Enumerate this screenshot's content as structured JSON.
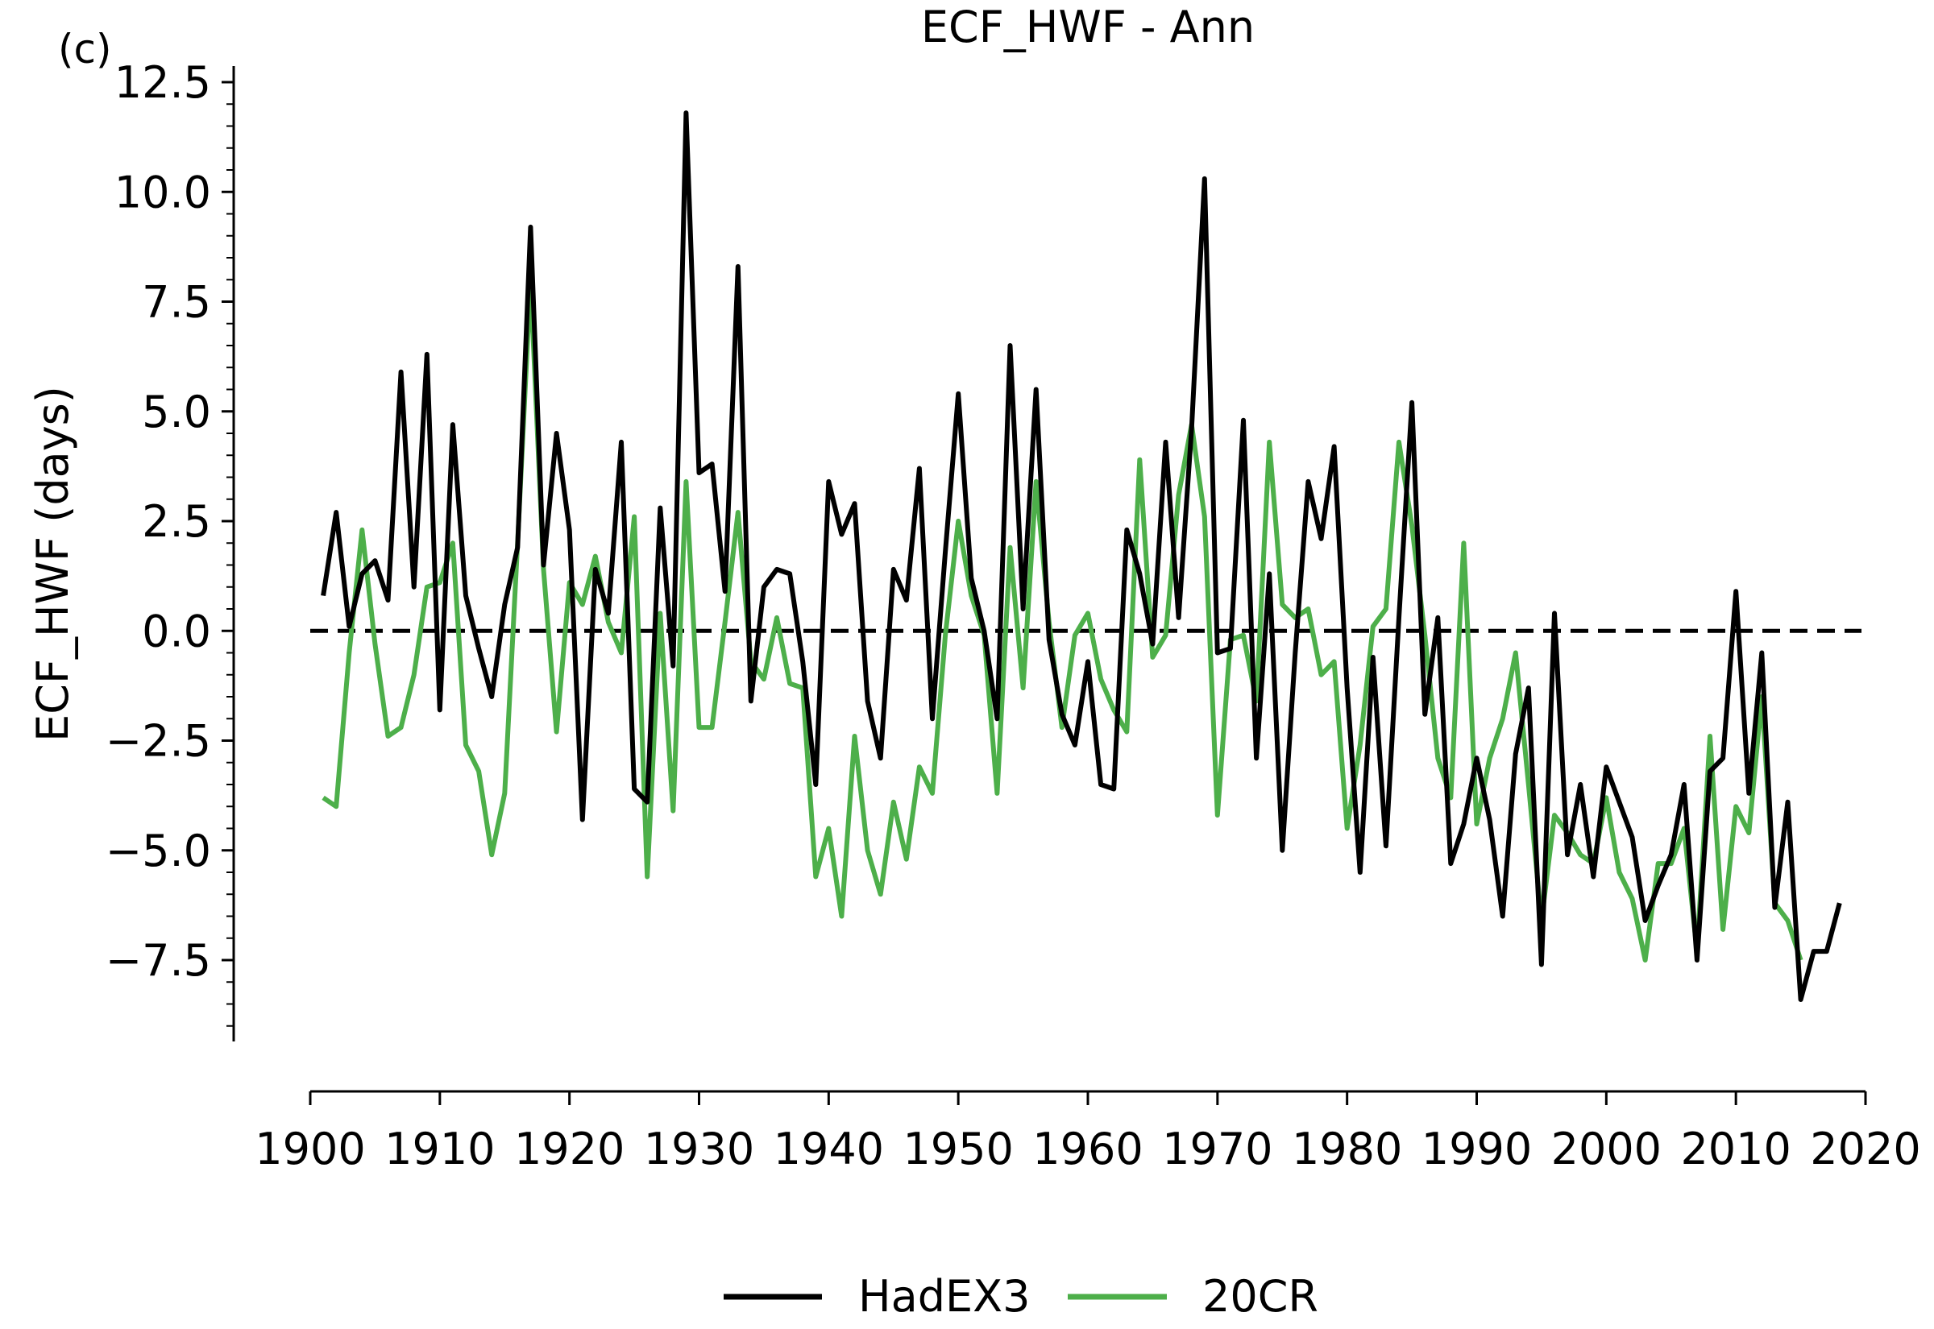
{
  "panel_label": "(c)",
  "legend": {
    "placement": "bottom-center"
  },
  "chart_data": {
    "type": "line",
    "title": "ECF_HWF - Ann",
    "xlabel": "",
    "ylabel": "ECF_HWF (days)",
    "xlim": [
      1900,
      2020
    ],
    "ylim": [
      -9.4,
      12.8
    ],
    "x_ticks": [
      1900,
      1910,
      1920,
      1930,
      1940,
      1950,
      1960,
      1970,
      1980,
      1990,
      2000,
      2010,
      2020
    ],
    "x_tick_labels": [
      "1900",
      "1910",
      "1920",
      "1930",
      "1940",
      "1950",
      "1960",
      "1970",
      "1980",
      "1990",
      "2000",
      "2010",
      "2020"
    ],
    "y_ticks": [
      12.5,
      10.0,
      7.5,
      5.0,
      2.5,
      0.0,
      -2.5,
      -5.0,
      -7.5
    ],
    "y_tick_labels": [
      "12.5",
      "10.0",
      "7.5",
      "5.0",
      "2.5",
      "0.0",
      "−2.5",
      "−5.0",
      "−7.5"
    ],
    "reference_line": {
      "y": 0,
      "style": "dashed",
      "color": "#000000"
    },
    "grid": false,
    "series": [
      {
        "name": "HadEX3",
        "color": "#000000",
        "x": [
          1901,
          1902,
          1903,
          1904,
          1905,
          1906,
          1907,
          1908,
          1909,
          1910,
          1911,
          1912,
          1913,
          1914,
          1915,
          1916,
          1917,
          1918,
          1919,
          1920,
          1921,
          1922,
          1923,
          1924,
          1925,
          1926,
          1927,
          1928,
          1929,
          1930,
          1931,
          1932,
          1933,
          1934,
          1935,
          1936,
          1937,
          1938,
          1939,
          1940,
          1941,
          1942,
          1943,
          1944,
          1945,
          1946,
          1947,
          1948,
          1949,
          1950,
          1951,
          1952,
          1953,
          1954,
          1955,
          1956,
          1957,
          1958,
          1959,
          1960,
          1961,
          1962,
          1963,
          1964,
          1965,
          1966,
          1967,
          1968,
          1969,
          1970,
          1971,
          1972,
          1973,
          1974,
          1975,
          1976,
          1977,
          1978,
          1979,
          1980,
          1981,
          1982,
          1983,
          1984,
          1985,
          1986,
          1987,
          1988,
          1989,
          1990,
          1991,
          1992,
          1993,
          1994,
          1995,
          1996,
          1997,
          1998,
          1999,
          2000,
          2001,
          2002,
          2003,
          2004,
          2005,
          2006,
          2007,
          2008,
          2009,
          2010,
          2011,
          2012,
          2013,
          2014,
          2015,
          2016,
          2017,
          2018
        ],
        "values": [
          0.8,
          2.7,
          0.1,
          1.3,
          1.6,
          0.7,
          5.9,
          1.0,
          6.3,
          -1.8,
          4.7,
          0.8,
          -0.4,
          -1.5,
          0.6,
          1.9,
          9.2,
          1.5,
          4.5,
          2.3,
          -4.3,
          1.4,
          0.4,
          4.3,
          -3.6,
          -3.9,
          2.8,
          -0.8,
          11.8,
          3.6,
          3.8,
          0.9,
          8.3,
          -1.6,
          1.0,
          1.4,
          1.3,
          -0.7,
          -3.5,
          3.4,
          2.2,
          2.9,
          -1.6,
          -2.9,
          1.4,
          0.7,
          3.7,
          -2.0,
          1.8,
          5.4,
          1.2,
          0.0,
          -2.0,
          6.5,
          0.5,
          5.5,
          -0.2,
          -1.9,
          -2.6,
          -0.7,
          -3.5,
          -3.6,
          2.3,
          1.3,
          -0.3,
          4.3,
          0.3,
          4.6,
          10.3,
          -0.5,
          -0.4,
          4.8,
          -2.9,
          1.3,
          -5.0,
          -0.5,
          3.4,
          2.1,
          4.2,
          -1.3,
          -5.5,
          -0.6,
          -4.9,
          0.3,
          5.2,
          -1.9,
          0.3,
          -5.3,
          -4.4,
          -2.9,
          -4.3,
          -6.5,
          -2.8,
          -1.3,
          -7.6,
          0.4,
          -5.1,
          -3.5,
          -5.6,
          -3.1,
          -3.9,
          -4.7,
          -6.6,
          -5.8,
          -5.1,
          -3.5,
          -7.5,
          -3.2,
          -2.9,
          0.9,
          -3.7,
          -0.5,
          -6.3,
          -3.9,
          -8.4,
          -7.3,
          -7.3,
          -6.2
        ]
      },
      {
        "name": "20CR",
        "color": "#4daf4a",
        "x": [
          1901,
          1902,
          1903,
          1904,
          1905,
          1906,
          1907,
          1908,
          1909,
          1910,
          1911,
          1912,
          1913,
          1914,
          1915,
          1916,
          1917,
          1918,
          1919,
          1920,
          1921,
          1922,
          1923,
          1924,
          1925,
          1926,
          1927,
          1928,
          1929,
          1930,
          1931,
          1932,
          1933,
          1934,
          1935,
          1936,
          1937,
          1938,
          1939,
          1940,
          1941,
          1942,
          1943,
          1944,
          1945,
          1946,
          1947,
          1948,
          1949,
          1950,
          1951,
          1952,
          1953,
          1954,
          1955,
          1956,
          1957,
          1958,
          1959,
          1960,
          1961,
          1962,
          1963,
          1964,
          1965,
          1966,
          1967,
          1968,
          1969,
          1970,
          1971,
          1972,
          1973,
          1974,
          1975,
          1976,
          1977,
          1978,
          1979,
          1980,
          1981,
          1982,
          1983,
          1984,
          1985,
          1986,
          1987,
          1988,
          1989,
          1990,
          1991,
          1992,
          1993,
          1994,
          1995,
          1996,
          1997,
          1998,
          1999,
          2000,
          2001,
          2002,
          2003,
          2004,
          2005,
          2006,
          2007,
          2008,
          2009,
          2010,
          2011,
          2012,
          2013,
          2014,
          2015
        ],
        "values": [
          -3.8,
          -4.0,
          -0.5,
          2.3,
          -0.3,
          -2.4,
          -2.2,
          -1.0,
          1.0,
          1.1,
          2.0,
          -2.6,
          -3.2,
          -5.1,
          -3.7,
          2.0,
          8.0,
          1.4,
          -2.3,
          1.1,
          0.6,
          1.7,
          0.2,
          -0.5,
          2.6,
          -5.6,
          0.4,
          -4.1,
          3.4,
          -2.2,
          -2.2,
          0.2,
          2.7,
          -0.7,
          -1.1,
          0.3,
          -1.2,
          -1.3,
          -5.6,
          -4.5,
          -6.5,
          -2.4,
          -5.0,
          -6.0,
          -3.9,
          -5.2,
          -3.1,
          -3.7,
          -0.1,
          2.5,
          0.8,
          -0.1,
          -3.7,
          1.9,
          -1.3,
          3.4,
          0.2,
          -2.2,
          -0.1,
          0.4,
          -1.1,
          -1.8,
          -2.3,
          3.9,
          -0.6,
          -0.1,
          3.1,
          4.7,
          2.6,
          -4.2,
          -0.2,
          -0.1,
          -1.6,
          4.3,
          0.6,
          0.3,
          0.5,
          -1.0,
          -0.7,
          -4.5,
          -2.6,
          0.1,
          0.5,
          4.3,
          2.4,
          -0.1,
          -2.9,
          -3.8,
          2.0,
          -4.4,
          -2.9,
          -2.0,
          -0.5,
          -3.5,
          -6.6,
          -4.2,
          -4.6,
          -5.1,
          -5.3,
          -3.8,
          -5.5,
          -6.1,
          -7.5,
          -5.3,
          -5.3,
          -4.5,
          -7.3,
          -2.4,
          -6.8,
          -4.0,
          -4.6,
          -1.5,
          -6.2,
          -6.6,
          -7.5
        ]
      }
    ]
  }
}
